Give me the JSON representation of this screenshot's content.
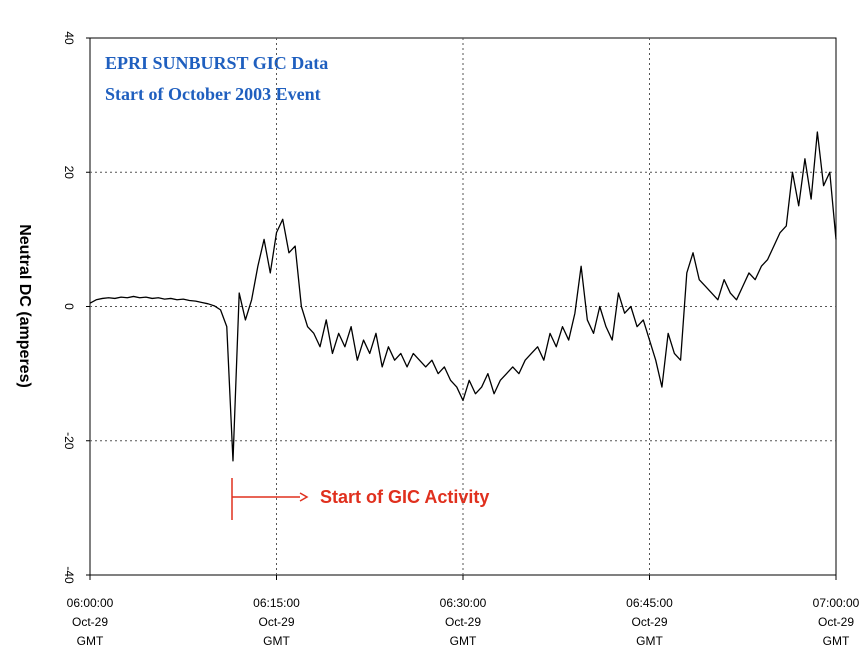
{
  "chart_data": {
    "type": "line",
    "title": "EPRI SUNBURST GIC Data",
    "subtitle": "Start of October 2003 Event",
    "y_label": "Neutral DC (amperes)",
    "annotation": "Start of GIC Activity",
    "color": "#000000",
    "grid": true,
    "x": [
      "06:00:00",
      "06:00:30",
      "06:01:00",
      "06:01:30",
      "06:02:00",
      "06:02:30",
      "06:03:00",
      "06:03:30",
      "06:04:00",
      "06:04:30",
      "06:05:00",
      "06:05:30",
      "06:06:00",
      "06:06:30",
      "06:07:00",
      "06:07:30",
      "06:08:00",
      "06:08:30",
      "06:09:00",
      "06:09:30",
      "06:10:00",
      "06:10:30",
      "06:11:00",
      "06:11:30",
      "06:12:00",
      "06:12:30",
      "06:13:00",
      "06:13:30",
      "06:14:00",
      "06:14:30",
      "06:15:00",
      "06:15:30",
      "06:16:00",
      "06:16:30",
      "06:17:00",
      "06:17:30",
      "06:18:00",
      "06:18:30",
      "06:19:00",
      "06:19:30",
      "06:20:00",
      "06:20:30",
      "06:21:00",
      "06:21:30",
      "06:22:00",
      "06:22:30",
      "06:23:00",
      "06:23:30",
      "06:24:00",
      "06:24:30",
      "06:25:00",
      "06:25:30",
      "06:26:00",
      "06:26:30",
      "06:27:00",
      "06:27:30",
      "06:28:00",
      "06:28:30",
      "06:29:00",
      "06:29:30",
      "06:30:00",
      "06:30:30",
      "06:31:00",
      "06:31:30",
      "06:32:00",
      "06:32:30",
      "06:33:00",
      "06:33:30",
      "06:34:00",
      "06:34:30",
      "06:35:00",
      "06:35:30",
      "06:36:00",
      "06:36:30",
      "06:37:00",
      "06:37:30",
      "06:38:00",
      "06:38:30",
      "06:39:00",
      "06:39:30",
      "06:40:00",
      "06:40:30",
      "06:41:00",
      "06:41:30",
      "06:42:00",
      "06:42:30",
      "06:43:00",
      "06:43:30",
      "06:44:00",
      "06:44:30",
      "06:45:00",
      "06:45:30",
      "06:46:00",
      "06:46:30",
      "06:47:00",
      "06:47:30",
      "06:48:00",
      "06:48:30",
      "06:49:00",
      "06:49:30",
      "06:50:00",
      "06:50:30",
      "06:51:00",
      "06:51:30",
      "06:52:00",
      "06:52:30",
      "06:53:00",
      "06:53:30",
      "06:54:00",
      "06:54:30",
      "06:55:00",
      "06:55:30",
      "06:56:00",
      "06:56:30",
      "06:57:00",
      "06:57:30",
      "06:58:00",
      "06:58:30",
      "06:59:00",
      "06:59:30",
      "07:00:00"
    ],
    "values": [
      0.5,
      1.0,
      1.2,
      1.3,
      1.2,
      1.4,
      1.3,
      1.5,
      1.3,
      1.4,
      1.2,
      1.3,
      1.1,
      1.2,
      1.0,
      1.1,
      0.9,
      0.8,
      0.6,
      0.4,
      0.1,
      -0.5,
      -3,
      -23,
      2,
      -2,
      1,
      6,
      10,
      5,
      11,
      13,
      8,
      9,
      0,
      -3,
      -4,
      -6,
      -2,
      -7,
      -4,
      -6,
      -3,
      -8,
      -5,
      -7,
      -4,
      -9,
      -6,
      -8,
      -7,
      -9,
      -7,
      -8,
      -9,
      -8,
      -10,
      -9,
      -11,
      -12,
      -14,
      -11,
      -13,
      -12,
      -10,
      -13,
      -11,
      -10,
      -9,
      -10,
      -8,
      -7,
      -6,
      -8,
      -4,
      -6,
      -3,
      -5,
      -1,
      6,
      -2,
      -4,
      0,
      -3,
      -5,
      2,
      -1,
      0,
      -3,
      -2,
      -5,
      -8,
      -12,
      -4,
      -7,
      -8,
      5,
      8,
      4,
      3,
      2,
      1,
      4,
      2,
      1,
      3,
      5,
      4,
      6,
      7,
      9,
      11,
      12,
      20,
      15,
      22,
      16,
      26,
      18,
      20,
      10
    ],
    "xlim": [
      "06:00:00",
      "07:00:00"
    ],
    "xticks": [
      {
        "value": "06:00:00",
        "label": [
          "06:00:00",
          "Oct-29",
          "GMT"
        ]
      },
      {
        "value": "06:15:00",
        "label": [
          "06:15:00",
          "Oct-29",
          "GMT"
        ]
      },
      {
        "value": "06:30:00",
        "label": [
          "06:30:00",
          "Oct-29",
          "GMT"
        ]
      },
      {
        "value": "06:45:00",
        "label": [
          "06:45:00",
          "Oct-29",
          "GMT"
        ]
      },
      {
        "value": "07:00:00",
        "label": [
          "07:00:00",
          "Oct-29",
          "GMT"
        ]
      }
    ],
    "ylim": [
      -40,
      40
    ],
    "yticks": [
      40,
      20,
      0,
      -20,
      -40
    ]
  }
}
